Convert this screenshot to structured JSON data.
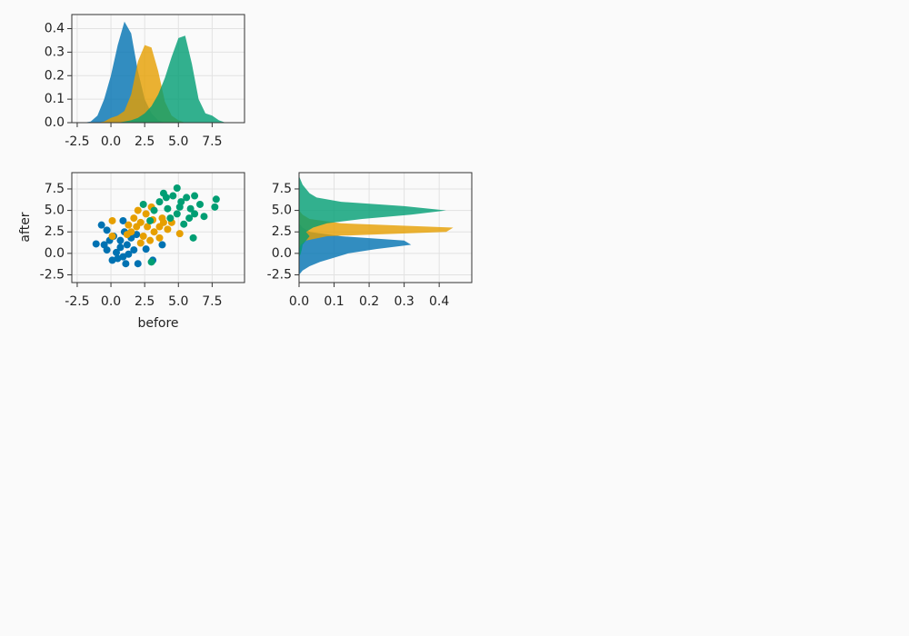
{
  "chart_data": [
    {
      "type": "density",
      "orientation": "vertical",
      "grid": true,
      "x": [
        -2,
        -1.5,
        -1,
        -0.5,
        0,
        0.5,
        1,
        1.5,
        2,
        2.5,
        3,
        3.5,
        4,
        4.5,
        5,
        5.5,
        6,
        6.5,
        7,
        7.5,
        8,
        8.5
      ],
      "series": [
        {
          "color": "#0072b2",
          "values": [
            0,
            0.005,
            0.03,
            0.1,
            0.2,
            0.33,
            0.43,
            0.38,
            0.22,
            0.1,
            0.04,
            0.01,
            0,
            0,
            0,
            0,
            0,
            0,
            0,
            0,
            0,
            0
          ]
        },
        {
          "color": "#e69f00",
          "values": [
            0,
            0,
            0,
            0.005,
            0.02,
            0.03,
            0.05,
            0.12,
            0.26,
            0.33,
            0.32,
            0.22,
            0.09,
            0.03,
            0.01,
            0,
            0,
            0,
            0,
            0,
            0,
            0
          ]
        },
        {
          "color": "#009e73",
          "values": [
            0,
            0,
            0,
            0,
            0,
            0,
            0.005,
            0.01,
            0.02,
            0.04,
            0.07,
            0.12,
            0.19,
            0.28,
            0.36,
            0.37,
            0.25,
            0.1,
            0.04,
            0.03,
            0.01,
            0
          ]
        }
      ],
      "xlim": [
        -2.9,
        9.9
      ],
      "ylim": [
        0,
        0.46
      ],
      "xticks": [
        -2.5,
        {
          "value": 0,
          "label": "0.0"
        },
        2.5,
        {
          "value": 5,
          "label": "5.0"
        },
        7.5
      ],
      "yticks": [
        {
          "value": 0,
          "label": "0.0"
        },
        0.1,
        0.2,
        0.3,
        0.4
      ]
    },
    {
      "type": "scatter",
      "grid": true,
      "xlabel": "before",
      "ylabel": "after",
      "series": [
        {
          "color": "#0072b2",
          "x": [
            -1.1,
            -0.7,
            -0.3,
            0.1,
            1.1,
            2.0,
            3.1,
            3.8,
            2.6,
            0.5,
            0.9,
            -0.3,
            0.2,
            0.7,
            1.2,
            0.4,
            1.5,
            1.0,
            -0.1,
            1.7,
            0.7,
            1.3,
            -0.5,
            1.9,
            0.9
          ],
          "y": [
            1.1,
            3.3,
            0.4,
            -0.8,
            -1.2,
            -1.2,
            -0.8,
            1.0,
            0.5,
            -0.6,
            3.8,
            2.7,
            2.0,
            1.5,
            1.0,
            0.1,
            1.8,
            2.5,
            1.5,
            0.4,
            0.7,
            -0.1,
            1.0,
            2.2,
            -0.4
          ]
        },
        {
          "color": "#e69f00",
          "x": [
            0.1,
            0.1,
            5.1,
            1.2,
            1.9,
            2.2,
            2.6,
            2.9,
            3.2,
            3.6,
            3.9,
            4.2,
            1.7,
            1.5,
            2.7,
            2.2,
            3.1,
            2.0,
            2.4,
            3.6,
            4.5,
            1.3,
            3.0,
            3.8
          ],
          "y": [
            3.8,
            2.0,
            2.3,
            2.2,
            3.1,
            3.6,
            4.6,
            1.5,
            2.5,
            3.1,
            3.6,
            2.8,
            4.1,
            2.5,
            3.1,
            1.2,
            3.9,
            5.0,
            2.0,
            1.8,
            3.6,
            3.3,
            5.4,
            4.1
          ]
        },
        {
          "color": "#009e73",
          "x": [
            7.8,
            7.7,
            4.9,
            6.1,
            3.0,
            2.4,
            3.9,
            4.6,
            5.2,
            5.6,
            5.9,
            6.2,
            6.6,
            6.9,
            4.2,
            4.9,
            3.6,
            2.9,
            3.2,
            5.4,
            5.8,
            5.1,
            4.4,
            6.2,
            4.1
          ],
          "y": [
            6.3,
            5.4,
            7.6,
            1.8,
            -1.0,
            5.7,
            7.0,
            6.7,
            6.0,
            6.5,
            5.2,
            4.6,
            5.7,
            4.3,
            5.2,
            4.6,
            6.0,
            3.8,
            5.0,
            3.4,
            4.1,
            5.4,
            4.1,
            6.7,
            6.5
          ]
        }
      ],
      "xlim": [
        -2.9,
        9.9
      ],
      "ylim": [
        -3.4,
        9.4
      ],
      "xticks": [
        -2.5,
        {
          "value": 0,
          "label": "0.0"
        },
        2.5,
        {
          "value": 5,
          "label": "5.0"
        },
        7.5
      ],
      "yticks": [
        -2.5,
        {
          "value": 0,
          "label": "0.0"
        },
        2.5,
        {
          "value": 5,
          "label": "5.0"
        },
        7.5
      ]
    },
    {
      "type": "density",
      "orientation": "horizontal",
      "grid": true,
      "y": [
        -2.5,
        -2,
        -1.5,
        -1,
        -0.5,
        0,
        0.5,
        1,
        1.5,
        2,
        2.5,
        3,
        3.5,
        4,
        4.5,
        5,
        5.5,
        6,
        6.5,
        7,
        7.5,
        8,
        8.5,
        9
      ],
      "series": [
        {
          "color": "#0072b2",
          "values": [
            0,
            0.01,
            0.03,
            0.06,
            0.1,
            0.14,
            0.22,
            0.32,
            0.3,
            0.12,
            0.03,
            0.01,
            0,
            0,
            0,
            0,
            0,
            0,
            0,
            0,
            0,
            0,
            0,
            0
          ]
        },
        {
          "color": "#e69f00",
          "values": [
            0,
            0,
            0,
            0,
            0,
            0,
            0,
            0.005,
            0.02,
            0.08,
            0.42,
            0.44,
            0.12,
            0.03,
            0.01,
            0,
            0,
            0,
            0,
            0,
            0,
            0,
            0,
            0
          ]
        },
        {
          "color": "#009e73",
          "values": [
            0,
            0,
            0,
            0,
            0,
            0.005,
            0.008,
            0.01,
            0.02,
            0.03,
            0.02,
            0.04,
            0.08,
            0.18,
            0.32,
            0.42,
            0.3,
            0.12,
            0.05,
            0.03,
            0.02,
            0.01,
            0.005,
            0
          ]
        }
      ],
      "xlim": [
        0,
        0.493
      ],
      "ylim": [
        -3.4,
        9.4
      ],
      "xticks": [
        {
          "value": 0,
          "label": "0.0"
        },
        0.1,
        0.2,
        0.3,
        0.4
      ],
      "yticks": [
        -2.5,
        {
          "value": 0,
          "label": "0.0"
        },
        2.5,
        {
          "value": 5,
          "label": "5.0"
        },
        7.5
      ]
    }
  ]
}
